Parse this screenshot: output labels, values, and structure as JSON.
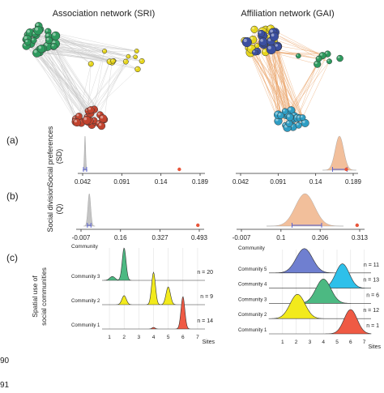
{
  "titles": {
    "left": "Association network (SRI)",
    "right": "Affiliation network (GAI)"
  },
  "panel_labels": {
    "a": "(a)",
    "b": "(b)",
    "c": "(c)"
  },
  "line_numbers": {
    "first": "90",
    "second": "91"
  },
  "colors": {
    "green": "#2e9a5e",
    "yellow": "#e6d51c",
    "red": "#c2432e",
    "blue_dark": "#3b4fa0",
    "cyan": "#2f9ec4",
    "gray_edge": "#c9c9c9",
    "orange_edge": "#e9a46a",
    "gray_dist": "#c4c4c4",
    "peach_dist": "#f2bf9b",
    "obs_point": "#e8553a",
    "ci_blue": "#5b63d0",
    "ridge_blue": "#6f7fd0",
    "ridge_cyan": "#2ec0ea",
    "ridge_green": "#4cb982",
    "ridge_yellow": "#f2ea1c",
    "ridge_red": "#ef5a44"
  },
  "chart_data": [
    {
      "id": "a-left",
      "type": "area",
      "ylabel": "Social preferences (SD)",
      "x_ticks": [
        "0.042",
        "0.091",
        "0.14",
        "0.189"
      ],
      "xlim": [
        0.042,
        0.189
      ],
      "null_distribution": {
        "mean": 0.045,
        "sd": 0.0008
      },
      "ci": [
        0.043,
        0.047
      ],
      "observed": 0.163
    },
    {
      "id": "a-right",
      "type": "area",
      "x_ticks": [
        "0.042",
        "0.091",
        "0.14",
        "0.189"
      ],
      "xlim": [
        0.042,
        0.189
      ],
      "null_distribution": {
        "mean": 0.171,
        "sd": 0.0055
      },
      "ci": [
        0.162,
        0.181
      ],
      "observed": 0.18
    },
    {
      "id": "b-left",
      "type": "area",
      "ylabel": "Social division (Q)",
      "x_ticks": [
        "-0.007",
        "0.16",
        "0.327",
        "0.493"
      ],
      "xlim": [
        -0.007,
        0.493
      ],
      "null_distribution": {
        "mean": 0.028,
        "sd": 0.006
      },
      "ci": [
        0.02,
        0.035
      ],
      "observed": 0.487
    },
    {
      "id": "b-right",
      "type": "area",
      "x_ticks": [
        "-0.007",
        "0.1",
        "0.206",
        "0.313"
      ],
      "xlim": [
        -0.007,
        0.313
      ],
      "null_distribution": {
        "mean": 0.165,
        "sd": 0.026
      },
      "ci": [
        0.13,
        0.21
      ],
      "observed": 0.306
    },
    {
      "id": "c-left",
      "type": "area",
      "ylabel": "Spatial use of social communities",
      "y_axis_title": "Community",
      "xlabel": "Sites",
      "x_ticks": [
        "1",
        "2",
        "3",
        "4",
        "5",
        "6",
        "7"
      ],
      "xlim": [
        0.5,
        7.5
      ],
      "series": [
        {
          "name": "Community 3",
          "n_label": "n = 20",
          "color_key": "ridge_green",
          "components": [
            {
              "mu": 2.0,
              "sd": 0.13,
              "w": 1.0
            },
            {
              "mu": 1.2,
              "sd": 0.18,
              "w": 0.12
            }
          ]
        },
        {
          "name": "Community 2",
          "n_label": "n = 9",
          "color_key": "ridge_yellow",
          "components": [
            {
              "mu": 2.0,
              "sd": 0.15,
              "w": 0.28
            },
            {
              "mu": 4.0,
              "sd": 0.13,
              "w": 1.0
            },
            {
              "mu": 5.0,
              "sd": 0.15,
              "w": 0.55
            }
          ]
        },
        {
          "name": "Community 1",
          "n_label": "n = 14",
          "color_key": "ridge_red",
          "components": [
            {
              "mu": 6.0,
              "sd": 0.13,
              "w": 1.0
            },
            {
              "mu": 4.0,
              "sd": 0.1,
              "w": 0.05
            }
          ]
        }
      ]
    },
    {
      "id": "c-right",
      "type": "area",
      "y_axis_title": "Community",
      "xlabel": "Sites",
      "x_ticks": [
        "1",
        "2",
        "3",
        "4",
        "5",
        "6",
        "7"
      ],
      "xlim": [
        0.0,
        7.5
      ],
      "series": [
        {
          "name": "Community 5",
          "n_label": "n = 11",
          "color_key": "ridge_blue",
          "components": [
            {
              "mu": 2.6,
              "sd": 0.6,
              "w": 1.0
            }
          ]
        },
        {
          "name": "Community 4",
          "n_label": "n = 13",
          "color_key": "ridge_cyan",
          "components": [
            {
              "mu": 5.4,
              "sd": 0.5,
              "w": 1.0
            }
          ]
        },
        {
          "name": "Community 3",
          "n_label": "n = 6",
          "color_key": "ridge_green",
          "components": [
            {
              "mu": 4.0,
              "sd": 0.55,
              "w": 1.0
            }
          ]
        },
        {
          "name": "Community 2",
          "n_label": "n = 12",
          "color_key": "ridge_yellow",
          "components": [
            {
              "mu": 2.1,
              "sd": 0.55,
              "w": 1.0
            }
          ]
        },
        {
          "name": "Community 1",
          "n_label": "n = 1",
          "color_key": "ridge_red",
          "components": [
            {
              "mu": 6.0,
              "sd": 0.48,
              "w": 1.0
            }
          ]
        }
      ]
    }
  ]
}
